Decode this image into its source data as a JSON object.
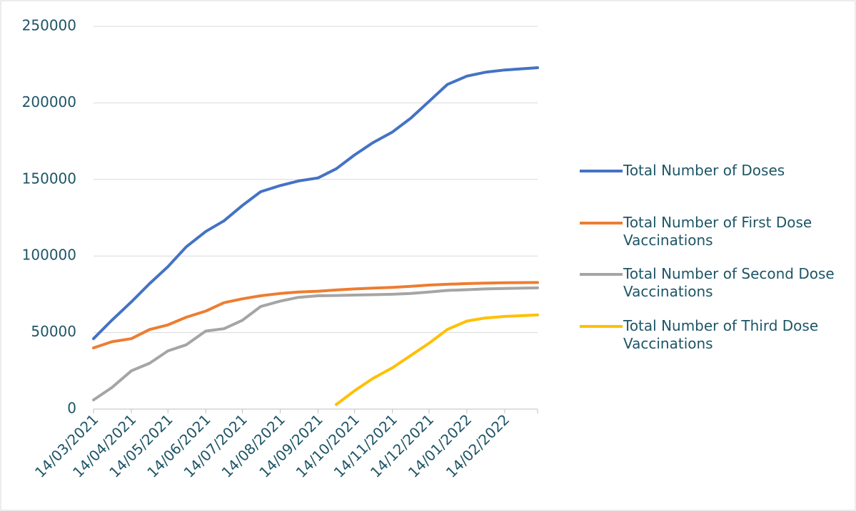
{
  "chart_data": {
    "type": "line",
    "x": [
      "14/03/2021",
      "29/03/2021",
      "14/04/2021",
      "29/04/2021",
      "14/05/2021",
      "29/05/2021",
      "14/06/2021",
      "29/06/2021",
      "14/07/2021",
      "29/07/2021",
      "14/08/2021",
      "29/08/2021",
      "14/09/2021",
      "29/09/2021",
      "14/10/2021",
      "29/10/2021",
      "14/11/2021",
      "29/11/2021",
      "14/12/2021",
      "29/12/2021",
      "14/01/2022",
      "29/01/2022",
      "14/02/2022",
      "13/03/2022"
    ],
    "series": [
      {
        "name": "Total Number of Doses",
        "color": "#4472c4",
        "values": [
          46000,
          58000,
          70000,
          82000,
          93000,
          106000,
          116000,
          123000,
          133000,
          142000,
          146000,
          149000,
          151000,
          157000,
          166000,
          174000,
          181000,
          190000,
          201000,
          212000,
          217500,
          220000,
          221500,
          223000
        ]
      },
      {
        "name": "Total Number of First Dose Vaccinations",
        "color": "#ed7d31",
        "values": [
          40000,
          44000,
          46000,
          52000,
          55000,
          60000,
          64000,
          69500,
          72000,
          74000,
          75500,
          76500,
          77000,
          77800,
          78500,
          79000,
          79500,
          80200,
          81000,
          81500,
          82000,
          82300,
          82500,
          82700
        ]
      },
      {
        "name": "Total Number of Second Dose Vaccinations",
        "color": "#a5a5a5",
        "values": [
          6000,
          14000,
          25000,
          30000,
          38000,
          42000,
          51000,
          52500,
          58000,
          67000,
          70500,
          73000,
          74000,
          74200,
          74500,
          74700,
          75000,
          75500,
          76500,
          77500,
          78000,
          78500,
          78800,
          79200
        ]
      },
      {
        "name": "Total Number of Third Dose Vaccinations",
        "color": "#ffc000",
        "values": [
          null,
          null,
          null,
          null,
          null,
          null,
          null,
          null,
          null,
          null,
          null,
          null,
          null,
          3000,
          12000,
          20000,
          27000,
          35000,
          43000,
          52000,
          57500,
          59500,
          60500,
          61500
        ]
      }
    ],
    "xlim": [
      "14/03/2021",
      "13/03/2022"
    ],
    "xticks": [
      "14/03/2021",
      "14/04/2021",
      "14/05/2021",
      "14/06/2021",
      "14/07/2021",
      "14/08/2021",
      "14/09/2021",
      "14/10/2021",
      "14/11/2021",
      "14/12/2021",
      "14/01/2022",
      "14/02/2022"
    ],
    "ylim": [
      0,
      250000
    ],
    "yticks": [
      0,
      50000,
      100000,
      150000,
      200000,
      250000
    ],
    "grid": true,
    "legend": "right"
  }
}
